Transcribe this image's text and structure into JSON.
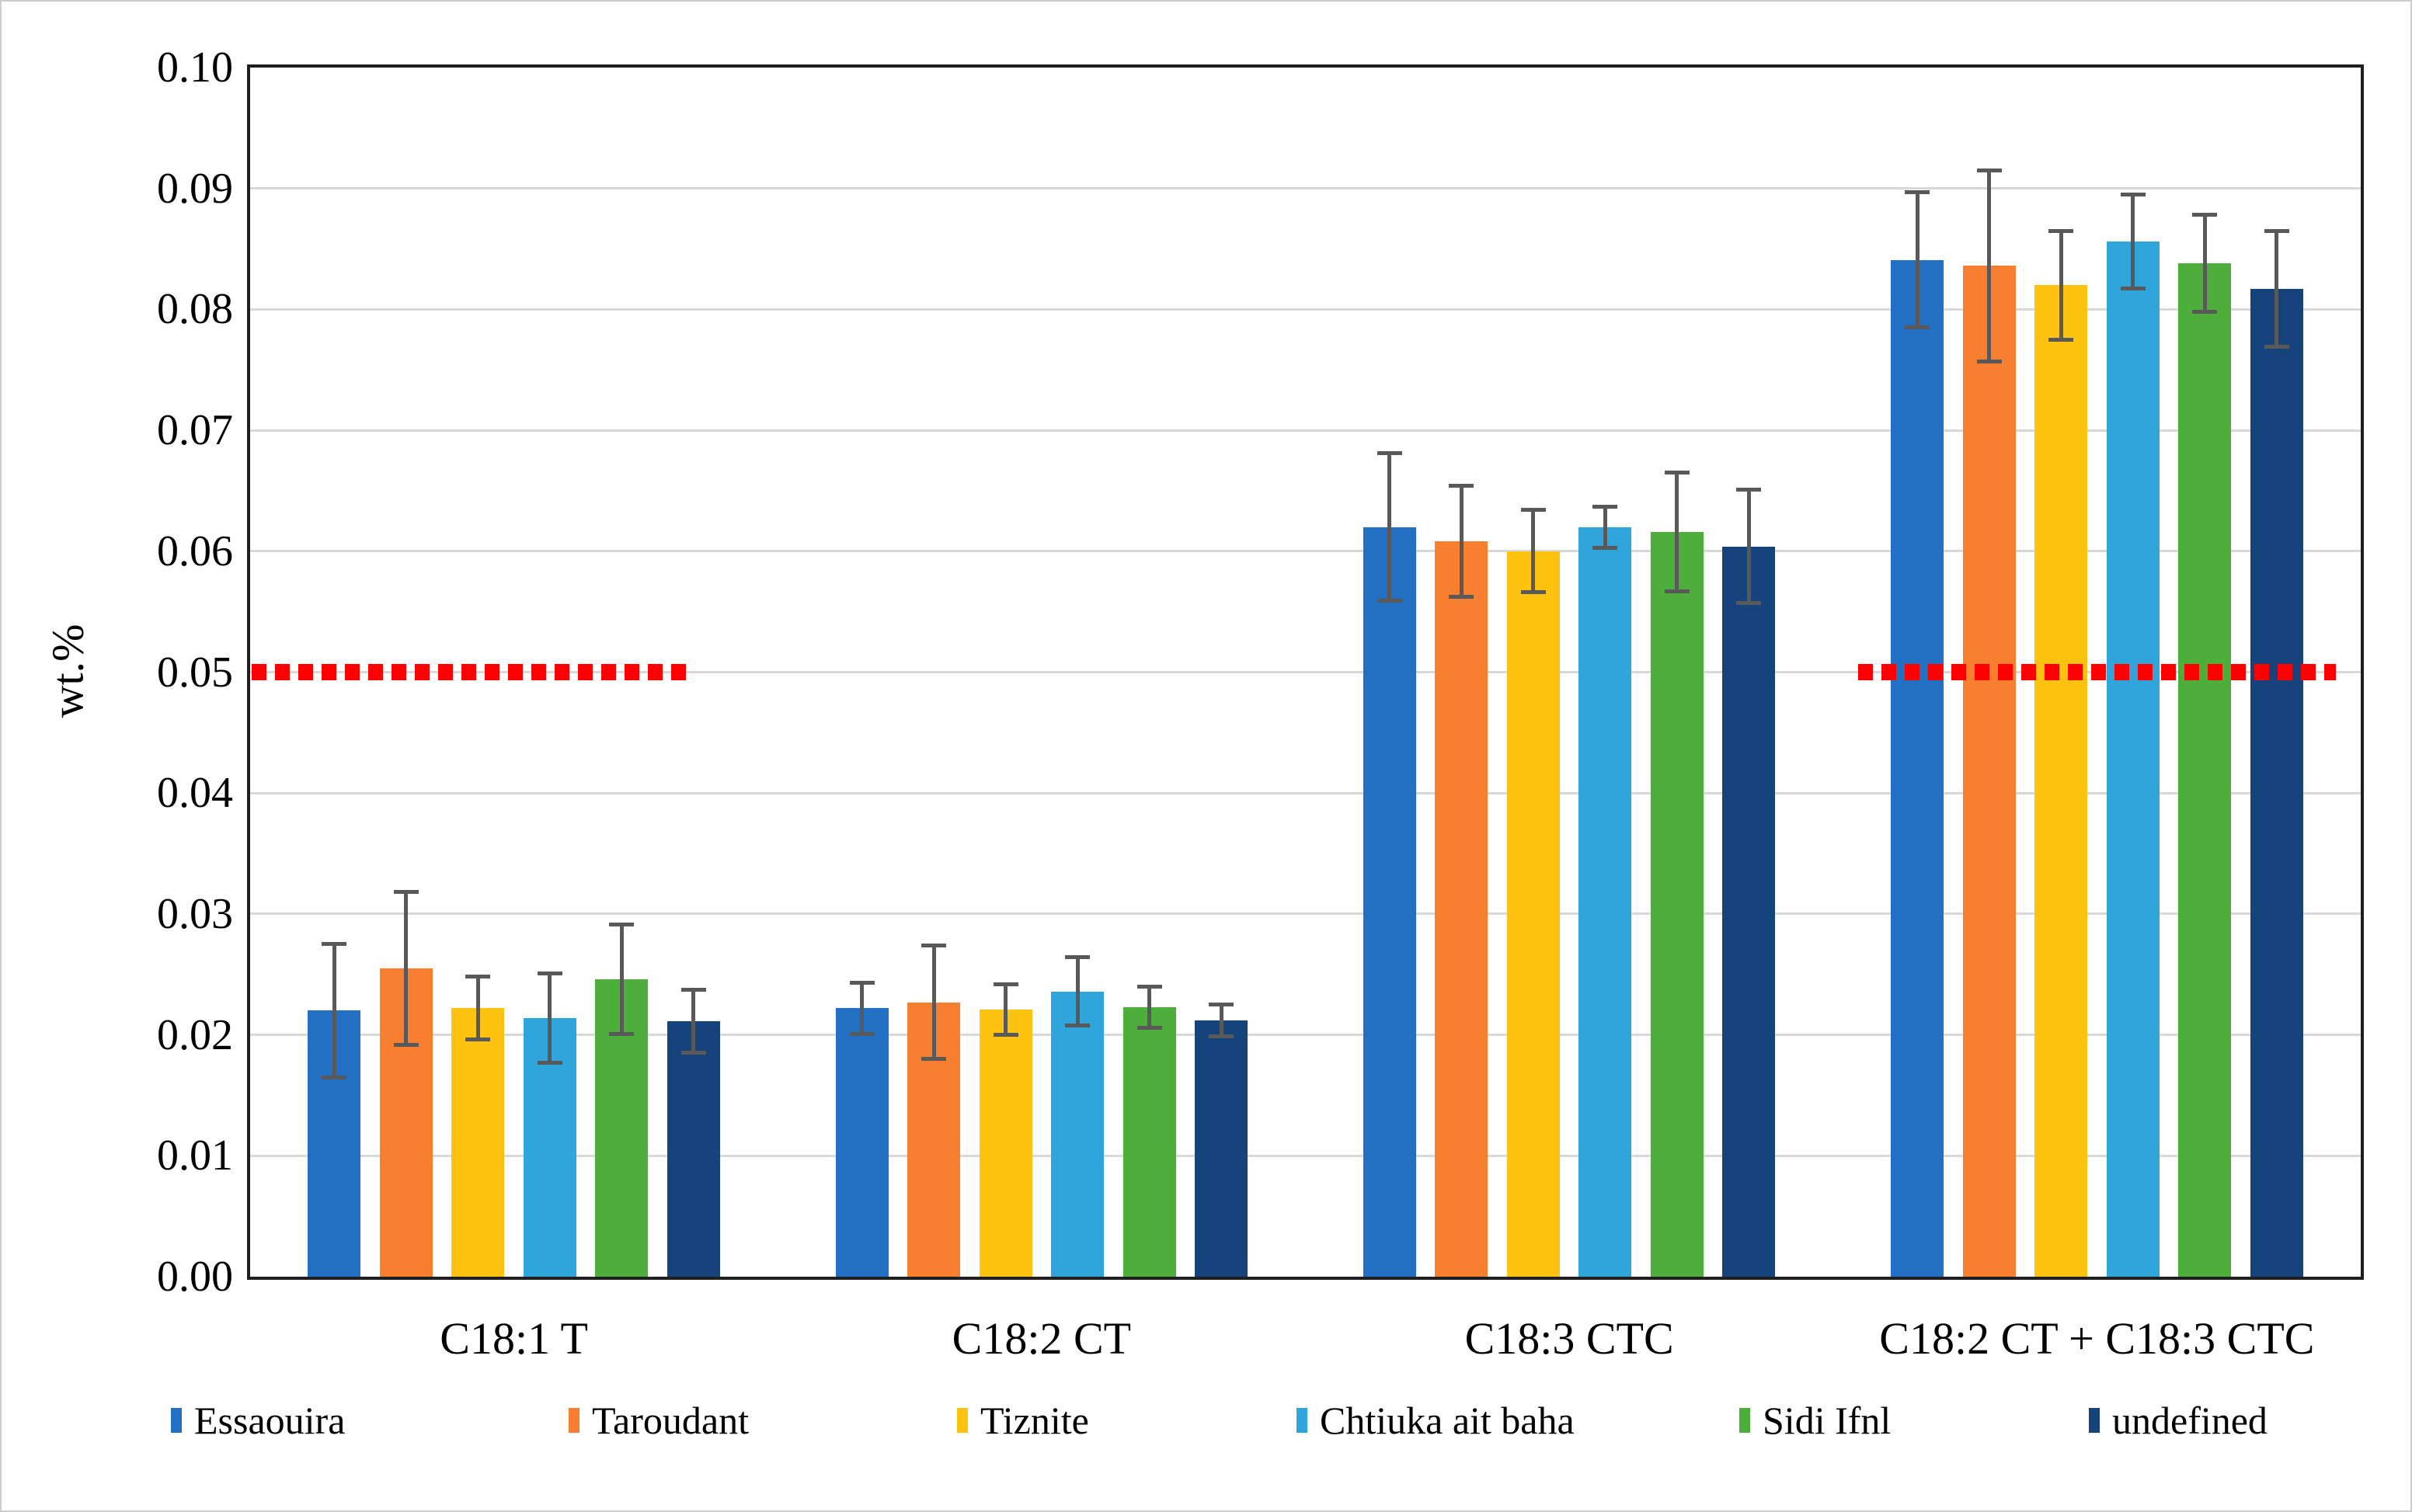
{
  "figure": {
    "background": "#ffffff",
    "border_color": "#cdcdcd"
  },
  "chart_data": {
    "type": "bar",
    "title": "",
    "xlabel": "",
    "ylabel": "wt.%",
    "ylim": [
      0,
      0.1
    ],
    "ytick_step": 0.01,
    "ytick_decimals": 2,
    "grid": true,
    "gridline_color": "#d9d9d9",
    "axis_color": "#1f1f1f",
    "error_bar_color": "#595959",
    "legend_position": "bottom",
    "categories": [
      "C18:1 T",
      "C18:2 CT",
      "C18:3 CTC",
      "C18:2 CT + C18:3 CTC"
    ],
    "series": [
      {
        "name": "Essaouira",
        "color": "#2170c4",
        "values": [
          0.022,
          0.0222,
          0.062,
          0.0841
        ],
        "errors": [
          0.0055,
          0.0021,
          0.0061,
          0.0056
        ]
      },
      {
        "name": "Taroudant",
        "color": "#f77f2f",
        "values": [
          0.0255,
          0.0227,
          0.0608,
          0.0836
        ],
        "errors": [
          0.0063,
          0.0047,
          0.0046,
          0.0079
        ]
      },
      {
        "name": "Tiznite",
        "color": "#fec210",
        "values": [
          0.0222,
          0.0221,
          0.06,
          0.082
        ],
        "errors": [
          0.0026,
          0.0021,
          0.0034,
          0.0045
        ]
      },
      {
        "name": "Chtiuka ait baha",
        "color": "#2fa5dc",
        "values": [
          0.0214,
          0.0236,
          0.062,
          0.0856
        ],
        "errors": [
          0.0037,
          0.0028,
          0.0017,
          0.0039
        ]
      },
      {
        "name": "Sidi Ifnl",
        "color": "#4eae3b",
        "values": [
          0.0246,
          0.0223,
          0.0616,
          0.0838
        ],
        "errors": [
          0.0045,
          0.0017,
          0.0049,
          0.004
        ]
      },
      {
        "name": "undefined",
        "color": "#16437b",
        "values": [
          0.0211,
          0.0212,
          0.0604,
          0.0817
        ],
        "errors": [
          0.0026,
          0.0013,
          0.0047,
          0.0048
        ]
      }
    ],
    "reference_lines": [
      {
        "value": 0.05,
        "color": "#fe0000",
        "style": "dotted",
        "over_categories": [
          "C18:1 T"
        ]
      },
      {
        "value": 0.05,
        "color": "#fe0000",
        "style": "dotted",
        "over_categories": [
          "C18:2 CT + C18:3 CTC"
        ]
      }
    ]
  }
}
